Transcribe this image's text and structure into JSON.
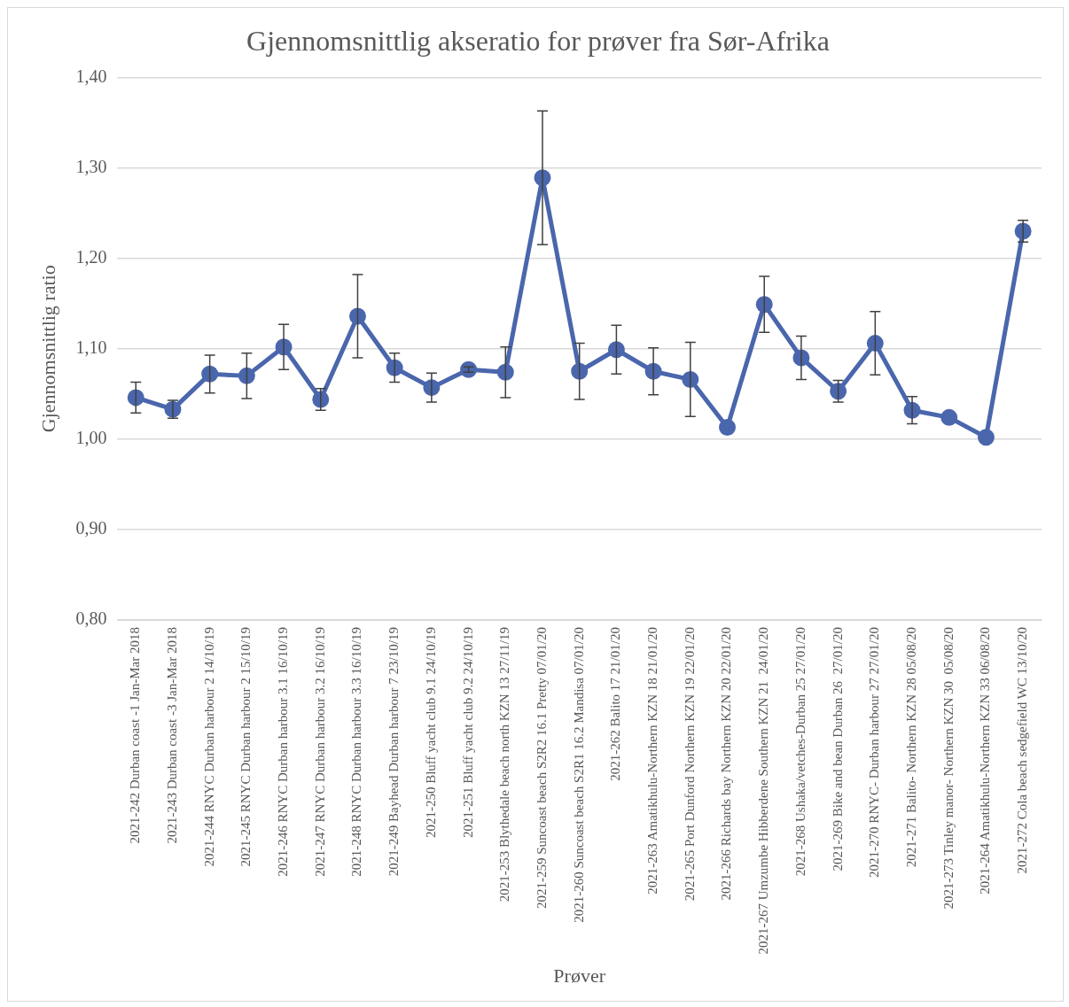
{
  "chart_data": {
    "type": "line",
    "title": "Gjennomsnittlig akseratio for prøver fra Sør-Afrika",
    "xlabel": "Prøver",
    "ylabel": "Gjennomsnittlig ratio",
    "categories": [
      "2021-242 Durban coast -1 Jan-Mar 2018",
      "2021-243 Durban coast -3 Jan-Mar 2018",
      "2021-244 RNYC Durban harbour 2 14/10/19",
      "2021-245 RNYC Durban harbour 2 15/10/19",
      "2021-246 RNYC Durban harbour 3.1 16/10/19",
      "2021-247 RNYC Durban harbour 3.2 16/10/19",
      "2021-248 RNYC Durban harbour 3.3 16/10/19",
      "2021-249 Bayhead Durban harbour 7 23/10/19",
      "2021-250 Bluff yacht club 9.1 24/10/19",
      "2021-251 Bluff yacht club 9.2 24/10/19",
      "2021-253 Blythedale beach north KZN 13 27/11/19",
      "2021-259 Suncoast beach S2R2 16.1 Pretty 07/01/20",
      "2021-260 Suncoast beach S2R1 16.2 Mandisa 07/01/20",
      "2021-262 Balito 17 21/01/20",
      "2021-263 Amatikhulu-Northern KZN 18 21/01/20",
      "2021-265 Port Dunford Northern KZN 19 22/01/20",
      "2021-266 Richards bay Northern KZN 20 22/01/20",
      "2021-267 Umzumbe Hibberdene Southern KZN 21  24/01/20",
      "2021-268 Ushaka/vetches-Durban 25 27/01/20",
      "2021-269 Bike and bean Durban 26  27/01/20",
      "2021-270 RNYC- Durban harbour 27 27/01/20",
      "2021-271 Balito- Northern KZN 28 05/08/20",
      "2021-273 Tinley manor- Northern KZN 30  05/08/20",
      "2021-264 Amatikhulu-Northern KZN 33 06/08/20",
      "2021-272 Cola beach sedgefield WC 13/10/20"
    ],
    "series": [
      {
        "color": "#4a66ac",
        "values": [
          1.046,
          1.033,
          1.072,
          1.07,
          1.102,
          1.044,
          1.136,
          1.079,
          1.057,
          1.077,
          1.074,
          1.289,
          1.075,
          1.099,
          1.075,
          1.066,
          1.013,
          1.149,
          1.09,
          1.053,
          1.106,
          1.032,
          1.024,
          1.002,
          1.23
        ],
        "errors": [
          0.017,
          0.01,
          0.021,
          0.025,
          0.025,
          0.012,
          0.046,
          0.016,
          0.016,
          0.003,
          0.028,
          0.074,
          0.031,
          0.027,
          0.026,
          0.041,
          null,
          0.031,
          0.024,
          0.012,
          0.035,
          0.015,
          null,
          null,
          0.012
        ]
      }
    ],
    "ylim": [
      0.8,
      1.4
    ],
    "yticks": [
      {
        "value": 0.8,
        "label": "0,80"
      },
      {
        "value": 0.9,
        "label": "0,90"
      },
      {
        "value": 1.0,
        "label": "1,00"
      },
      {
        "value": 1.1,
        "label": "1,10"
      },
      {
        "value": 1.2,
        "label": "1,20"
      },
      {
        "value": 1.3,
        "label": "1,30"
      },
      {
        "value": 1.4,
        "label": "1,40"
      }
    ],
    "grid": "y",
    "legend": false,
    "marker": "circle",
    "line_style": "solid"
  }
}
